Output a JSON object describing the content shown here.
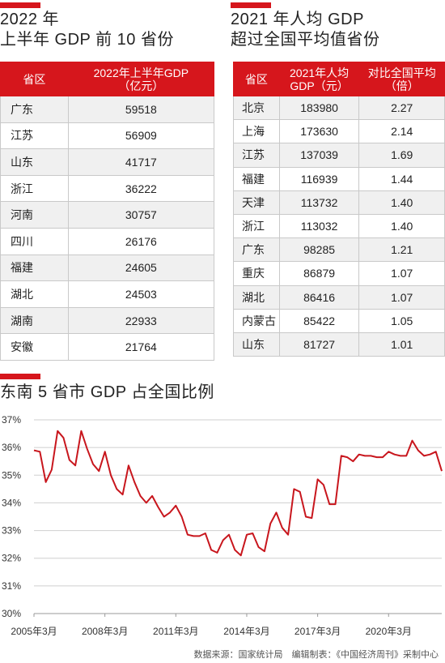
{
  "left_panel": {
    "title_line1": "2022 年",
    "title_line2": "上半年 GDP 前 10 省份",
    "header_col1": "省区",
    "header_col2_line1": "2022年上半年GDP",
    "header_col2_line2": "（亿元）",
    "rows": [
      {
        "province": "广东",
        "value": "59518"
      },
      {
        "province": "江苏",
        "value": "56909"
      },
      {
        "province": "山东",
        "value": "41717"
      },
      {
        "province": "浙江",
        "value": "36222"
      },
      {
        "province": "河南",
        "value": "30757"
      },
      {
        "province": "四川",
        "value": "26176"
      },
      {
        "province": "福建",
        "value": "24605"
      },
      {
        "province": "湖北",
        "value": "24503"
      },
      {
        "province": "湖南",
        "value": "22933"
      },
      {
        "province": "安徽",
        "value": "21764"
      }
    ]
  },
  "right_panel": {
    "title_line1": "2021 年人均 GDP",
    "title_line2": "超过全国平均值省份",
    "header_col1": "省区",
    "header_col2_line1": "2021年人均",
    "header_col2_line2": "GDP（元）",
    "header_col3_line1": "对比全国平均",
    "header_col3_line2": "（倍）",
    "rows": [
      {
        "province": "北京",
        "value": "183980",
        "ratio": "2.27"
      },
      {
        "province": "上海",
        "value": "173630",
        "ratio": "2.14"
      },
      {
        "province": "江苏",
        "value": "137039",
        "ratio": "1.69"
      },
      {
        "province": "福建",
        "value": "116939",
        "ratio": "1.44"
      },
      {
        "province": "天津",
        "value": "113732",
        "ratio": "1.40"
      },
      {
        "province": "浙江",
        "value": "113032",
        "ratio": "1.40"
      },
      {
        "province": "广东",
        "value": "98285",
        "ratio": "1.21"
      },
      {
        "province": "重庆",
        "value": "86879",
        "ratio": "1.07"
      },
      {
        "province": "湖北",
        "value": "86416",
        "ratio": "1.07"
      },
      {
        "province": "内蒙古",
        "value": "85422",
        "ratio": "1.05"
      },
      {
        "province": "山东",
        "value": "81727",
        "ratio": "1.01"
      }
    ]
  },
  "chart_title": "东南 5 省市 GDP 占全国比例",
  "source": "数据来源：国家统计局　编辑制表：《中国经济周刊》采制中心",
  "colors": {
    "accent": "#d6161c",
    "line": "#c8161d",
    "grid": "#cfcfcf",
    "alt_row": "#f0f0f0"
  },
  "chart_data": {
    "type": "line",
    "title": "东南 5 省市 GDP 占全国比例",
    "y_tick_labels": [
      "30%",
      "31%",
      "32%",
      "33%",
      "34%",
      "35%",
      "36%",
      "37%"
    ],
    "ylim": [
      30,
      37
    ],
    "x_tick_labels": [
      "2005年3月",
      "2008年3月",
      "2011年3月",
      "2014年3月",
      "2017年3月",
      "2020年3月"
    ],
    "x_tick_index": [
      0,
      12,
      24,
      36,
      48,
      60
    ],
    "grid": "horizontal",
    "series": [
      {
        "values": [
          35.9,
          35.85,
          34.75,
          35.2,
          36.6,
          36.35,
          35.55,
          35.35,
          36.6,
          35.95,
          35.4,
          35.15,
          35.85,
          35.0,
          34.5,
          34.3,
          35.35,
          34.75,
          34.25,
          34.0,
          34.25,
          33.85,
          33.5,
          33.65,
          33.9,
          33.5,
          32.85,
          32.8,
          32.8,
          32.9,
          32.3,
          32.2,
          32.65,
          32.85,
          32.3,
          32.1,
          32.85,
          32.9,
          32.4,
          32.25,
          33.25,
          33.65,
          33.1,
          32.85,
          34.5,
          34.4,
          33.5,
          33.45,
          34.85,
          34.65,
          33.95,
          33.95,
          35.7,
          35.65,
          35.5,
          35.75,
          35.7,
          35.7,
          35.65,
          35.65,
          35.85,
          35.75,
          35.7,
          35.7,
          36.25,
          35.9,
          35.7,
          35.75,
          35.85,
          35.15
        ]
      }
    ]
  }
}
